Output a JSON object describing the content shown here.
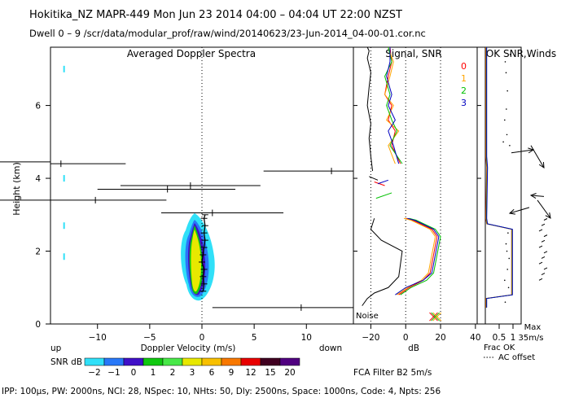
{
  "header": {
    "line1": "Hokitika_NZ   MAPR-449   Mon Jun 23 2014 04:00 – 04:04 UT 22:00 NZST",
    "line2": "Dwell   0 –   9    /scr/data/modular_prof/raw/wind/20140623/23-Jun-2014_04-00-01.cor.nc"
  },
  "footer": "IPP: 100μs,  PW: 2000ns,  NCI:  28,  NSpec: 10, NHts: 50,  Dly: 2500ns,  Space: 1000ns,  Code: 4,  Npts: 256",
  "colorbar": {
    "label": "SNR dB",
    "ticks": [
      "−2",
      "−1",
      "0",
      "1",
      "2",
      "3",
      "6",
      "9",
      "12",
      "15",
      "20"
    ],
    "colors": [
      "#30e0f8",
      "#2878f8",
      "#4010c8",
      "#10c810",
      "#48e848",
      "#e8e800",
      "#f8c000",
      "#f87800",
      "#e80000",
      "#400020",
      "#500080"
    ]
  },
  "chart_data": [
    {
      "type": "contour",
      "title": "Averaged Doppler Spectra",
      "xlabel": "Doppler Velocity (m/s)",
      "ylabel": "Height (km)",
      "x_side_labels": {
        "left": "up",
        "right": "down"
      },
      "xlim": [
        -14.5,
        14.5
      ],
      "ylim": [
        0,
        7.6
      ],
      "xticks": [
        -10,
        -5,
        0,
        5,
        10
      ],
      "yticks": [
        0,
        2,
        4,
        6
      ],
      "mean_velocity_profile": {
        "height_km": [
          0.9,
          1.1,
          1.3,
          1.5,
          1.7,
          1.9,
          2.1,
          2.3,
          2.5,
          2.7,
          2.9,
          3.0
        ],
        "velocity_ms": [
          0.1,
          0.2,
          0.1,
          0.2,
          0.0,
          0.1,
          0.2,
          0.3,
          0.2,
          0.3,
          0.2,
          0.3
        ]
      },
      "outlier_bars": [
        {
          "height_km": 0.45,
          "center": 9.5,
          "left": 1.0,
          "right": 14.5
        },
        {
          "height_km": 3.05,
          "center": 1.0,
          "left": -3.9,
          "right": 7.8
        },
        {
          "height_km": 3.4,
          "center": -10.2,
          "left": -14.5,
          "right": -3.4
        },
        {
          "height_km": 3.7,
          "center": -3.3,
          "left": -10.0,
          "right": 3.2
        },
        {
          "height_km": 3.8,
          "center": -1.1,
          "left": -7.8,
          "right": 5.6
        },
        {
          "height_km": 4.2,
          "center": 12.4,
          "left": 5.9,
          "right": 14.5
        },
        {
          "height_km": 4.4,
          "center": -13.5,
          "left": -14.5,
          "right": -7.3
        }
      ]
    },
    {
      "type": "line",
      "title": "Signal, SNR",
      "xlabel": "dB",
      "xlim": [
        -30,
        41
      ],
      "ylim": [
        0,
        7.6
      ],
      "xticks": [
        -20,
        0,
        20,
        40
      ],
      "noise_label": "Noise",
      "series": [
        {
          "name": "noise",
          "color": "#000000",
          "x": [
            -25,
            -22,
            -18,
            -10,
            -4,
            -2,
            -14,
            -20,
            -18,
            -19,
            -20,
            -21,
            -20,
            -22,
            -21,
            -20,
            -22,
            -21,
            -22
          ],
          "y": [
            0.5,
            0.7,
            0.85,
            1.0,
            1.3,
            2.0,
            2.3,
            2.6,
            2.9,
            4.2,
            4.6,
            5.1,
            5.5,
            6.0,
            6.5,
            6.9,
            7.3,
            7.5,
            7.6
          ]
        },
        {
          "name": "0",
          "color": "#ff0000",
          "x": [
            -4,
            2,
            10,
            14,
            18,
            15,
            4,
            0,
            -3,
            -8,
            -6,
            -10,
            -8,
            -12,
            -10,
            -8,
            -9
          ],
          "y": [
            0.8,
            1.0,
            1.2,
            1.4,
            2.4,
            2.6,
            2.85,
            2.9,
            4.4,
            4.9,
            5.3,
            5.6,
            6.0,
            6.3,
            6.8,
            7.2,
            7.6
          ]
        },
        {
          "name": "1",
          "color": "#ffa500",
          "x": [
            -5,
            1,
            9,
            13,
            17,
            14,
            3,
            -1,
            -6,
            -10,
            -4,
            -11,
            -7,
            -12,
            -9,
            -7,
            -10
          ],
          "y": [
            0.8,
            1.0,
            1.2,
            1.4,
            2.4,
            2.6,
            2.85,
            2.9,
            4.4,
            4.9,
            5.3,
            5.6,
            6.0,
            6.3,
            6.8,
            7.2,
            7.6
          ]
        },
        {
          "name": "2",
          "color": "#00c000",
          "x": [
            -3,
            3,
            12,
            16,
            20,
            17,
            6,
            2,
            -2,
            -9,
            -5,
            -8,
            -11,
            -9,
            -12,
            -8,
            -10
          ],
          "y": [
            0.8,
            1.0,
            1.2,
            1.4,
            2.4,
            2.6,
            2.85,
            2.9,
            4.4,
            4.9,
            5.3,
            5.6,
            6.0,
            6.3,
            6.8,
            7.2,
            7.6
          ]
        },
        {
          "name": "3",
          "color": "#0000c0",
          "x": [
            -6,
            0,
            10,
            15,
            19,
            16,
            5,
            1,
            -4,
            -7,
            -10,
            -6,
            -10,
            -8,
            -11,
            -9,
            -9
          ],
          "y": [
            0.8,
            1.0,
            1.2,
            1.4,
            2.4,
            2.6,
            2.85,
            2.9,
            4.4,
            4.9,
            5.3,
            5.6,
            6.0,
            6.3,
            6.8,
            7.2,
            7.6
          ]
        }
      ]
    },
    {
      "type": "line",
      "title": "OK SNR,Winds",
      "xlabel": "Frac OK",
      "xticks": [
        "0.5",
        "1"
      ],
      "max_label": "Max",
      "max_value": "35m/s",
      "legend_note": "AC offset",
      "filter_note": "FCA Filter B2   5m/s",
      "legend": [
        "0",
        "1",
        "2",
        "3"
      ],
      "frac_ok": {
        "height_km": [
          0.45,
          0.7,
          0.8,
          2.6,
          2.75,
          2.9,
          4.3,
          4.6,
          5.0,
          7.6
        ],
        "value": [
          0.02,
          0.02,
          0.95,
          0.95,
          0.05,
          0.02,
          0.05,
          0.02,
          0.02,
          0.02
        ]
      },
      "wind_barbs_height_km": [
        4.7,
        4.9,
        3.6,
        3.2,
        3.4
      ]
    }
  ]
}
